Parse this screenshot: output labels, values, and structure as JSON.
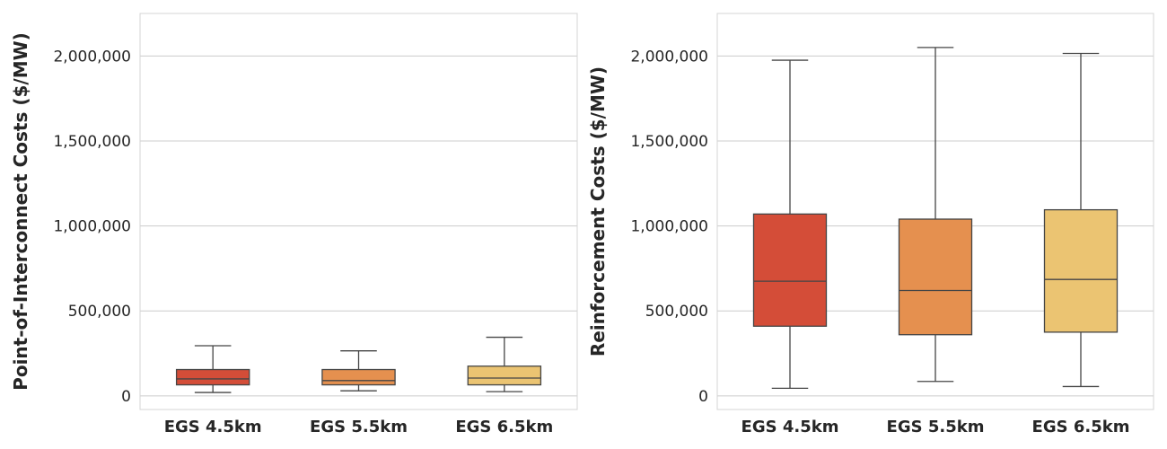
{
  "chart_data": [
    {
      "type": "box",
      "ylabel": "Point-of-Interconnect Costs ($/MW)",
      "xlabel": "",
      "ylim": [
        -80000,
        2250000
      ],
      "yticks": [
        0,
        500000,
        1000000,
        1500000,
        2000000
      ],
      "ytick_labels": [
        "0",
        "500,000",
        "1,000,000",
        "1,500,000",
        "2,000,000"
      ],
      "grid": true,
      "categories": [
        "EGS 4.5km",
        "EGS 5.5km",
        "EGS 6.5km"
      ],
      "boxes": [
        {
          "category": "EGS 4.5km",
          "whisker_low": 20000,
          "q1": 65000,
          "median": 100000,
          "q3": 155000,
          "whisker_high": 295000,
          "color": "#d44d38"
        },
        {
          "category": "EGS 5.5km",
          "whisker_low": 30000,
          "q1": 65000,
          "median": 90000,
          "q3": 155000,
          "whisker_high": 265000,
          "color": "#e5904f"
        },
        {
          "category": "EGS 6.5km",
          "whisker_low": 25000,
          "q1": 65000,
          "median": 105000,
          "q3": 175000,
          "whisker_high": 345000,
          "color": "#ebc472"
        }
      ]
    },
    {
      "type": "box",
      "ylabel": "Reinforcement Costs ($/MW)",
      "xlabel": "",
      "ylim": [
        -80000,
        2250000
      ],
      "yticks": [
        0,
        500000,
        1000000,
        1500000,
        2000000
      ],
      "ytick_labels": [
        "0",
        "500,000",
        "1,000,000",
        "1,500,000",
        "2,000,000"
      ],
      "grid": true,
      "categories": [
        "EGS 4.5km",
        "EGS 5.5km",
        "EGS 6.5km"
      ],
      "boxes": [
        {
          "category": "EGS 4.5km",
          "whisker_low": 45000,
          "q1": 410000,
          "median": 675000,
          "q3": 1070000,
          "whisker_high": 1975000,
          "color": "#d44d38"
        },
        {
          "category": "EGS 5.5km",
          "whisker_low": 85000,
          "q1": 360000,
          "median": 620000,
          "q3": 1040000,
          "whisker_high": 2050000,
          "color": "#e5904f"
        },
        {
          "category": "EGS 6.5km",
          "whisker_low": 55000,
          "q1": 375000,
          "median": 685000,
          "q3": 1095000,
          "whisker_high": 2015000,
          "color": "#ebc472"
        }
      ]
    }
  ]
}
